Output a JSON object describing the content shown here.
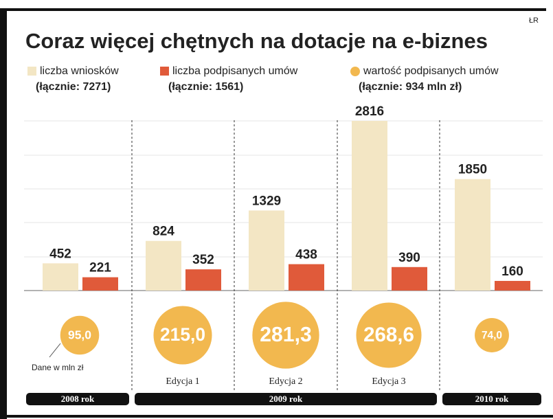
{
  "chart_data": {
    "type": "bar",
    "title": "Coraz więcej chętnych na dotacje na e-biznes",
    "source": "ŁR",
    "categories": [
      null,
      "Edycja 1",
      "Edycja 2",
      "Edycja 3",
      null
    ],
    "periods": [
      "2008 rok",
      "2009 rok",
      "2010 rok"
    ],
    "series": [
      {
        "name": "liczba wniosków",
        "legend_subtitle": "(łącznie: 7271)",
        "color": "#f3e6c4",
        "values": [
          452,
          824,
          1329,
          2816,
          1850
        ]
      },
      {
        "name": "liczba podpisanych umów",
        "legend_subtitle": "(łącznie: 1561)",
        "color": "#e05a3a",
        "values": [
          221,
          352,
          438,
          390,
          160
        ]
      }
    ],
    "bubbles": {
      "name": "wartość podpisanych umów",
      "legend_subtitle": "(łącznie: 934 mln zł)",
      "color": "#f2b84f",
      "values": [
        95,
        215,
        281.3,
        268.6,
        74
      ],
      "value_labels": [
        "95,0",
        "215,0",
        "281,3",
        "268,6",
        "74,0"
      ]
    },
    "annotation": "Dane w mln zł",
    "ylim": [
      0,
      2816
    ]
  }
}
